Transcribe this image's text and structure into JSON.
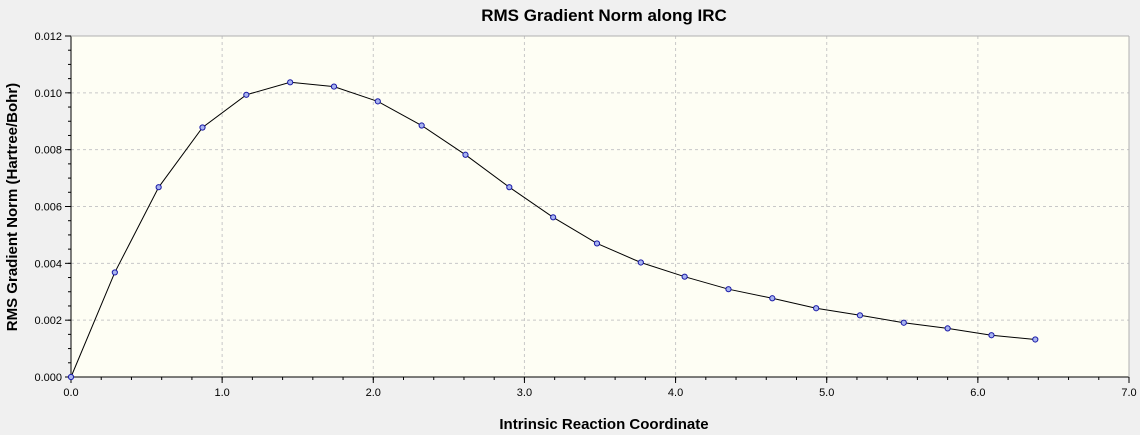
{
  "chart_data": {
    "type": "line",
    "title": "RMS Gradient Norm along IRC",
    "xlabel": "Intrinsic Reaction Coordinate",
    "ylabel": "RMS Gradient Norm (Hartree/Bohr)",
    "xlim": [
      0.0,
      7.0
    ],
    "ylim": [
      0.0,
      0.012
    ],
    "xticks": [
      "0.0",
      "1.0",
      "2.0",
      "3.0",
      "4.0",
      "5.0",
      "6.0",
      "7.0"
    ],
    "yticks": [
      "0.000",
      "0.002",
      "0.004",
      "0.006",
      "0.008",
      "0.010",
      "0.012"
    ],
    "x_minor_step": 0.2,
    "y_minor_step": 0.0005,
    "grid": true,
    "series": [
      {
        "x": [
          0.0,
          0.29,
          0.58,
          0.87,
          1.16,
          1.45,
          1.74,
          2.03,
          2.32,
          2.61,
          2.9,
          3.19,
          3.48,
          3.77,
          4.06,
          4.35,
          4.64,
          4.93,
          5.22,
          5.51,
          5.8,
          6.09,
          6.38
        ],
        "y": [
          0.0,
          0.00368,
          0.00668,
          0.00878,
          0.00993,
          0.01037,
          0.01022,
          0.0097,
          0.00885,
          0.00782,
          0.00668,
          0.00562,
          0.0047,
          0.00403,
          0.00353,
          0.00309,
          0.00277,
          0.00242,
          0.00217,
          0.00191,
          0.00171,
          0.00147,
          0.00132
        ]
      }
    ],
    "colors": {
      "plot_bg": "#fefef4",
      "page_bg": "#f0f0f0",
      "grid": "#c8c8c8",
      "line": "#000000",
      "marker_fill": "#a8b4f0",
      "marker_stroke": "#1a1aa6"
    }
  }
}
